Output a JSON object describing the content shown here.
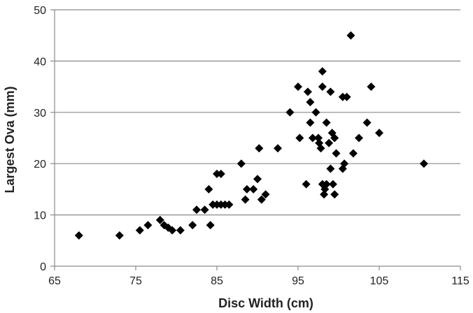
{
  "chart_data": {
    "type": "scatter",
    "title": "",
    "xlabel": "Disc Width (cm)",
    "ylabel": "Largest Ova (mm)",
    "xlim": [
      65,
      115
    ],
    "ylim": [
      0,
      50
    ],
    "xticks": [
      65,
      75,
      85,
      95,
      105,
      115
    ],
    "yticks": [
      0,
      10,
      20,
      30,
      40,
      50
    ],
    "grid": "horizontal",
    "legend": "none",
    "marker": "diamond",
    "marker_color": "#000000",
    "series": [
      {
        "x": [
          68,
          73,
          75.5,
          76.5,
          78,
          78.5,
          79,
          79.5,
          80.5,
          82,
          82.5,
          83.5,
          84,
          84.2,
          84.5,
          85,
          85,
          85.5,
          85.5,
          86,
          86.5,
          88,
          88.5,
          88.7,
          89.5,
          90,
          90.2,
          90.5,
          91,
          92.5,
          94,
          95,
          95.2,
          96,
          96.2,
          96.5,
          96.5,
          96.8,
          97.2,
          97.5,
          97.6,
          97.8,
          98,
          98,
          98,
          98.2,
          98.3,
          98.5,
          98.5,
          98.8,
          99,
          99,
          99.2,
          99.3,
          99.5,
          99.5,
          99.7,
          100.5,
          100.5,
          100.7,
          101,
          101.5,
          101.8,
          102.5,
          103.5,
          104,
          105,
          110.5
        ],
        "y": [
          6,
          6,
          7,
          8,
          9,
          8,
          7.5,
          7,
          7,
          8,
          11,
          11,
          15,
          8,
          12,
          12,
          18,
          12,
          18,
          12,
          12,
          20,
          13,
          15,
          15,
          17,
          23,
          13,
          14,
          23,
          30,
          35,
          25,
          16,
          34,
          32,
          28,
          25,
          30,
          25,
          24,
          23,
          38,
          35,
          16,
          14,
          15,
          16,
          28,
          24,
          34,
          19,
          26,
          16,
          25,
          14,
          22,
          33,
          19,
          20,
          33,
          45,
          22,
          25,
          28,
          35,
          26,
          20
        ]
      }
    ]
  }
}
